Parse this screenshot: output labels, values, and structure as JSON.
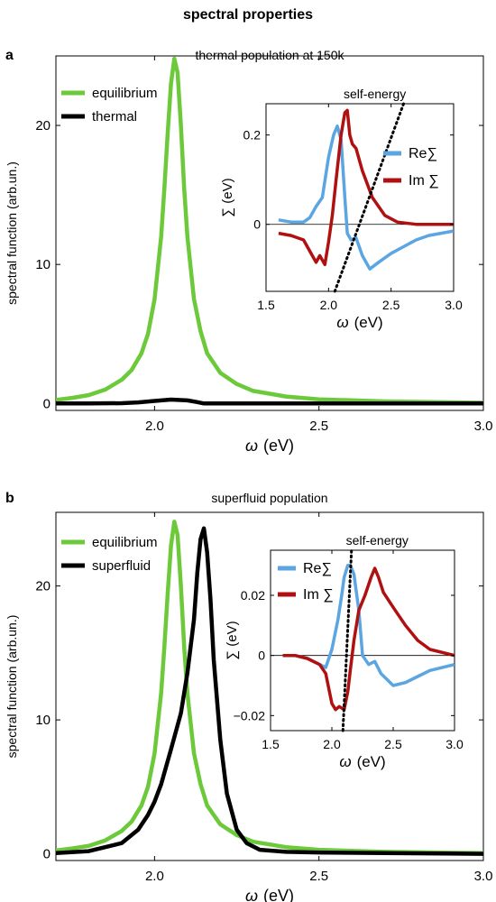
{
  "figure": {
    "title": "spectral properties"
  },
  "chart_data": [
    {
      "id": "a",
      "type": "line",
      "panel_label": "a",
      "title": "thermal population at 150k",
      "xlabel_symbol": "ω",
      "xlabel_unit": "(eV)",
      "ylabel": "spectral function  (arb.un.)",
      "xlim": [
        1.7,
        3.0
      ],
      "ylim": [
        -0.5,
        25
      ],
      "xticks": [
        2.0,
        2.5,
        3.0
      ],
      "xtick_labels": [
        "2.0",
        "2.5",
        "3.0"
      ],
      "yticks": [
        0,
        10,
        20
      ],
      "ytick_labels": [
        "0",
        "10",
        "20"
      ],
      "legend_position": "top-left",
      "series": [
        {
          "name": "equilibrium",
          "color": "#6cc93a",
          "x": [
            1.7,
            1.75,
            1.8,
            1.85,
            1.9,
            1.93,
            1.96,
            1.98,
            2.0,
            2.02,
            2.03,
            2.04,
            2.05,
            2.06,
            2.07,
            2.08,
            2.09,
            2.1,
            2.12,
            2.14,
            2.16,
            2.2,
            2.25,
            2.3,
            2.4,
            2.5,
            2.7,
            3.0
          ],
          "y": [
            0.25,
            0.4,
            0.6,
            1.0,
            1.7,
            2.4,
            3.6,
            5.0,
            7.5,
            12.0,
            15.5,
            19.5,
            23.0,
            24.8,
            23.8,
            20.0,
            15.5,
            12.0,
            7.5,
            5.2,
            3.6,
            2.2,
            1.4,
            0.9,
            0.5,
            0.3,
            0.15,
            0.05
          ]
        },
        {
          "name": "thermal",
          "color": "#000000",
          "x": [
            1.7,
            1.8,
            1.9,
            1.95,
            2.0,
            2.05,
            2.1,
            2.13,
            2.15,
            2.2,
            2.3,
            2.5,
            3.0
          ],
          "y": [
            0.0,
            0.0,
            0.02,
            0.08,
            0.18,
            0.28,
            0.22,
            0.1,
            0.0,
            0.0,
            0.0,
            0.0,
            0.0
          ]
        }
      ]
    },
    {
      "id": "a-inset",
      "type": "line",
      "title": "self-energy",
      "xlabel_symbol": "ω",
      "xlabel_unit": "(eV)",
      "ylabel": "∑ (eV)",
      "xlim": [
        1.5,
        3.0
      ],
      "ylim": [
        -0.15,
        0.27
      ],
      "xticks": [
        1.5,
        2.0,
        2.5,
        3.0
      ],
      "xtick_labels": [
        "1.5",
        "2.0",
        "2.5",
        "3.0"
      ],
      "yticks": [
        0,
        0.2
      ],
      "ytick_labels": [
        "0",
        "0.2"
      ],
      "legend_position": "right",
      "series": [
        {
          "name": "Re∑",
          "color": "#5aa5e2",
          "x": [
            1.6,
            1.7,
            1.8,
            1.85,
            1.9,
            1.95,
            2.0,
            2.04,
            2.07,
            2.1,
            2.13,
            2.15,
            2.18,
            2.22,
            2.27,
            2.33,
            2.4,
            2.5,
            2.6,
            2.7,
            2.8,
            3.0
          ],
          "y": [
            0.01,
            0.005,
            0.005,
            0.015,
            0.04,
            0.06,
            0.15,
            0.2,
            0.22,
            0.19,
            0.06,
            -0.02,
            -0.035,
            -0.03,
            -0.07,
            -0.1,
            -0.085,
            -0.065,
            -0.05,
            -0.035,
            -0.025,
            -0.015
          ]
        },
        {
          "name": "Im ∑",
          "color": "#b01010",
          "x": [
            1.6,
            1.7,
            1.8,
            1.85,
            1.9,
            1.93,
            1.97,
            2.0,
            2.03,
            2.06,
            2.1,
            2.13,
            2.15,
            2.17,
            2.19,
            2.22,
            2.27,
            2.35,
            2.45,
            2.55,
            2.7,
            3.0
          ],
          "y": [
            -0.02,
            -0.025,
            -0.035,
            -0.06,
            -0.085,
            -0.07,
            -0.09,
            -0.04,
            0.02,
            0.1,
            0.2,
            0.25,
            0.255,
            0.2,
            0.18,
            0.17,
            0.12,
            0.06,
            0.02,
            0.005,
            0.0,
            0.0
          ]
        }
      ],
      "reference_line": {
        "style": "dotted",
        "color": "#000000",
        "x": [
          2.05,
          2.6
        ],
        "y": [
          -0.15,
          0.27
        ]
      }
    },
    {
      "id": "b",
      "type": "line",
      "panel_label": "b",
      "title": "superfluid population",
      "xlabel_symbol": "ω",
      "xlabel_unit": "(eV)",
      "ylabel": "spectral function  (arb.un.)",
      "xlim": [
        1.7,
        3.0
      ],
      "ylim": [
        -0.5,
        25.5
      ],
      "xticks": [
        2.0,
        2.5,
        3.0
      ],
      "xtick_labels": [
        "2.0",
        "2.5",
        "3.0"
      ],
      "yticks": [
        0,
        10,
        20
      ],
      "ytick_labels": [
        "0",
        "10",
        "20"
      ],
      "legend_position": "top-left",
      "series": [
        {
          "name": "equilibrium",
          "color": "#6cc93a",
          "x": [
            1.7,
            1.75,
            1.8,
            1.85,
            1.9,
            1.93,
            1.96,
            1.98,
            2.0,
            2.02,
            2.03,
            2.04,
            2.05,
            2.06,
            2.07,
            2.08,
            2.09,
            2.1,
            2.12,
            2.14,
            2.16,
            2.2,
            2.25,
            2.3,
            2.4,
            2.5,
            2.7,
            3.0
          ],
          "y": [
            0.25,
            0.4,
            0.6,
            1.0,
            1.7,
            2.4,
            3.6,
            5.0,
            7.5,
            12.0,
            15.5,
            19.5,
            23.0,
            24.8,
            23.8,
            20.0,
            15.5,
            12.0,
            7.5,
            5.2,
            3.6,
            2.2,
            1.4,
            0.9,
            0.5,
            0.3,
            0.15,
            0.05
          ]
        },
        {
          "name": "superfluid",
          "color": "#000000",
          "x": [
            1.7,
            1.8,
            1.9,
            1.95,
            1.98,
            2.0,
            2.02,
            2.05,
            2.08,
            2.1,
            2.12,
            2.13,
            2.14,
            2.15,
            2.16,
            2.17,
            2.18,
            2.2,
            2.22,
            2.25,
            2.28,
            2.32,
            2.4,
            2.5,
            2.7,
            3.0
          ],
          "y": [
            0.05,
            0.2,
            0.8,
            1.8,
            2.9,
            3.9,
            5.2,
            7.8,
            10.5,
            13.5,
            17.5,
            21.0,
            23.5,
            24.3,
            22.5,
            19.0,
            14.5,
            8.5,
            4.5,
            1.8,
            0.8,
            0.3,
            0.15,
            0.1,
            0.05,
            0.0
          ]
        }
      ]
    },
    {
      "id": "b-inset",
      "type": "line",
      "title": "self-energy",
      "xlabel_symbol": "ω",
      "xlabel_unit": "(eV)",
      "ylabel": "∑ (eV)",
      "xlim": [
        1.5,
        3.0
      ],
      "ylim": [
        -0.025,
        0.035
      ],
      "xticks": [
        1.5,
        2.0,
        2.5,
        3.0
      ],
      "xtick_labels": [
        "1.5",
        "2.0",
        "2.5",
        "3.0"
      ],
      "yticks": [
        -0.02,
        0,
        0.02
      ],
      "ytick_labels": [
        "−0.02",
        "0",
        "0.02"
      ],
      "legend_position": "top-left",
      "series": [
        {
          "name": "Re∑",
          "color": "#5aa5e2",
          "x": [
            1.6,
            1.7,
            1.8,
            1.85,
            1.9,
            1.95,
            2.0,
            2.05,
            2.08,
            2.1,
            2.13,
            2.15,
            2.18,
            2.22,
            2.25,
            2.3,
            2.35,
            2.4,
            2.5,
            2.6,
            2.7,
            2.8,
            3.0
          ],
          "y": [
            0.0,
            0.0,
            -0.001,
            -0.002,
            -0.003,
            -0.004,
            0.002,
            0.012,
            0.02,
            0.026,
            0.03,
            0.03,
            0.027,
            0.015,
            0.0,
            -0.003,
            -0.002,
            -0.006,
            -0.01,
            -0.009,
            -0.007,
            -0.005,
            -0.003
          ]
        },
        {
          "name": "Im ∑",
          "color": "#b01010",
          "x": [
            1.6,
            1.7,
            1.8,
            1.9,
            1.95,
            2.0,
            2.03,
            2.06,
            2.1,
            2.13,
            2.15,
            2.18,
            2.22,
            2.27,
            2.32,
            2.35,
            2.38,
            2.42,
            2.5,
            2.6,
            2.7,
            2.8,
            3.0
          ],
          "y": [
            0.0,
            0.0,
            -0.001,
            -0.003,
            -0.006,
            -0.016,
            -0.018,
            -0.017,
            -0.018,
            -0.012,
            -0.005,
            0.005,
            0.015,
            0.02,
            0.026,
            0.029,
            0.026,
            0.021,
            0.016,
            0.01,
            0.005,
            0.002,
            0.0
          ]
        }
      ],
      "reference_line": {
        "style": "dotted",
        "color": "#000000",
        "x": [
          2.09,
          2.16
        ],
        "y": [
          -0.025,
          0.035
        ]
      }
    }
  ]
}
